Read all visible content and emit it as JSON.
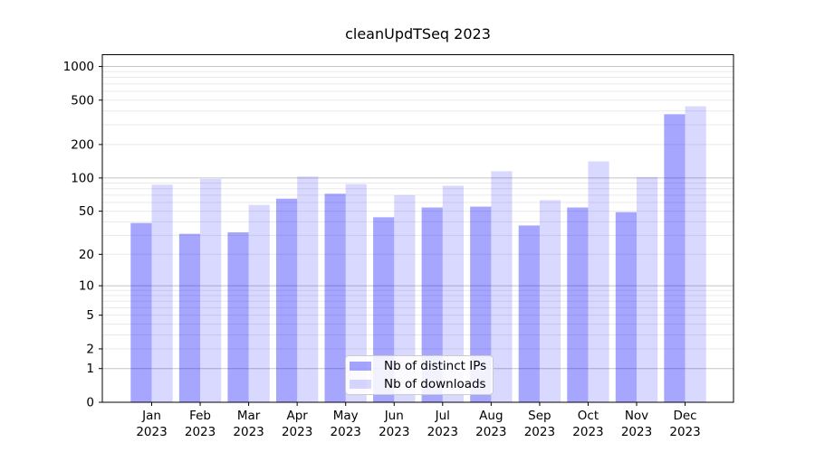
{
  "title": "cleanUpdTSeq 2023",
  "legend": {
    "items": [
      {
        "label": "Nb of distinct IPs",
        "color": "rgba(0,0,255,0.35)"
      },
      {
        "label": "Nb of downloads",
        "color": "rgba(0,0,255,0.15)"
      }
    ]
  },
  "chart_data": {
    "type": "bar",
    "title": "cleanUpdTSeq 2023",
    "scale": "log1p",
    "categories": [
      "Jan",
      "Feb",
      "Mar",
      "Apr",
      "May",
      "Jun",
      "Jul",
      "Aug",
      "Sep",
      "Oct",
      "Nov",
      "Dec"
    ],
    "x_year": "2023",
    "series": [
      {
        "name": "Nb of distinct IPs",
        "color": "rgba(0,0,255,0.35)",
        "values": [
          39,
          31,
          32,
          65,
          72,
          44,
          54,
          55,
          37,
          54,
          49,
          374
        ]
      },
      {
        "name": "Nb of downloads",
        "color": "rgba(0,0,255,0.15)",
        "values": [
          87,
          98,
          57,
          103,
          88,
          70,
          85,
          115,
          63,
          141,
          102,
          440
        ]
      }
    ],
    "y_ticks": [
      0,
      1,
      2,
      5,
      10,
      20,
      50,
      100,
      200,
      500,
      1000
    ],
    "ylim": [
      0,
      1275
    ],
    "xlabel": "",
    "ylabel": "",
    "grid": "both",
    "legend_position": "lower-center",
    "colors": {
      "major_grid": "#c3c3c3",
      "minor_grid": "#eaeaea",
      "spine": "#000000",
      "text": "#000000"
    }
  }
}
